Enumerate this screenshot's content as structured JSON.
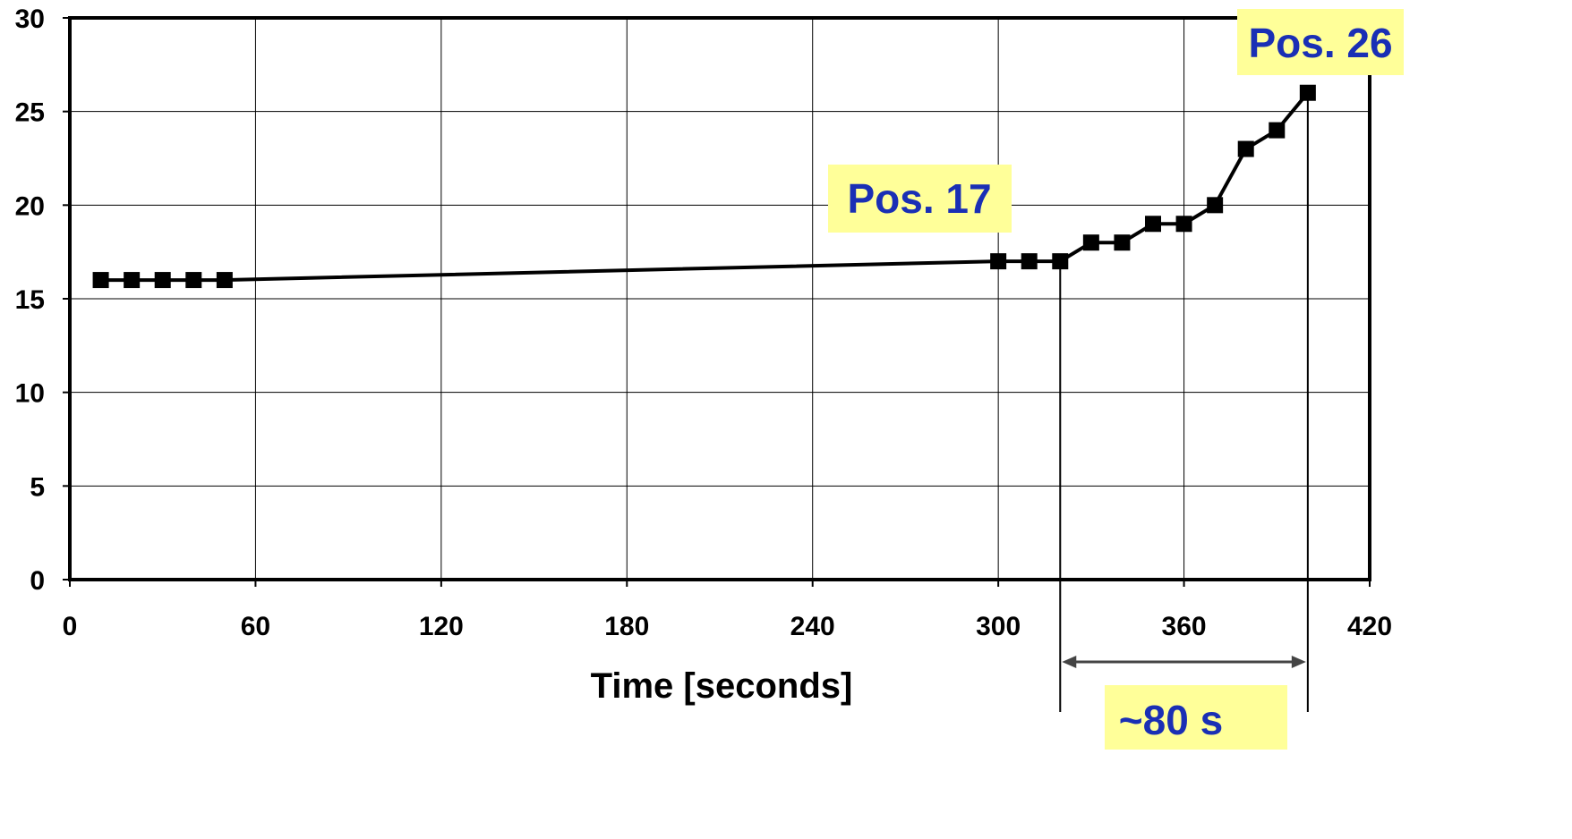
{
  "chart_data": {
    "type": "line",
    "xlabel": "Time [seconds]",
    "ylabel": "",
    "xlim": [
      0,
      420
    ],
    "ylim": [
      0,
      30
    ],
    "xticks": [
      0,
      60,
      120,
      180,
      240,
      300,
      360,
      420
    ],
    "yticks": [
      0,
      5,
      10,
      15,
      20,
      25,
      30
    ],
    "grid": true,
    "marker": "square",
    "line_color": "#000000",
    "series": [
      {
        "x": [
          10,
          20,
          30,
          40,
          50,
          300,
          310,
          320,
          330,
          340,
          350,
          360,
          370,
          380,
          390,
          400
        ],
        "y": [
          16,
          16,
          16,
          16,
          16,
          17,
          17,
          17,
          18,
          18,
          19,
          19,
          20,
          23,
          24,
          26
        ]
      }
    ],
    "annotations": {
      "pos17": {
        "text": "Pos. 17"
      },
      "pos26": {
        "text": "Pos. 26"
      },
      "interval": {
        "text": "~80 s",
        "from": 320,
        "to": 400
      }
    },
    "colors": {
      "annotation_text": "#1a2fb5",
      "annotation_background": "#ffff99"
    }
  }
}
